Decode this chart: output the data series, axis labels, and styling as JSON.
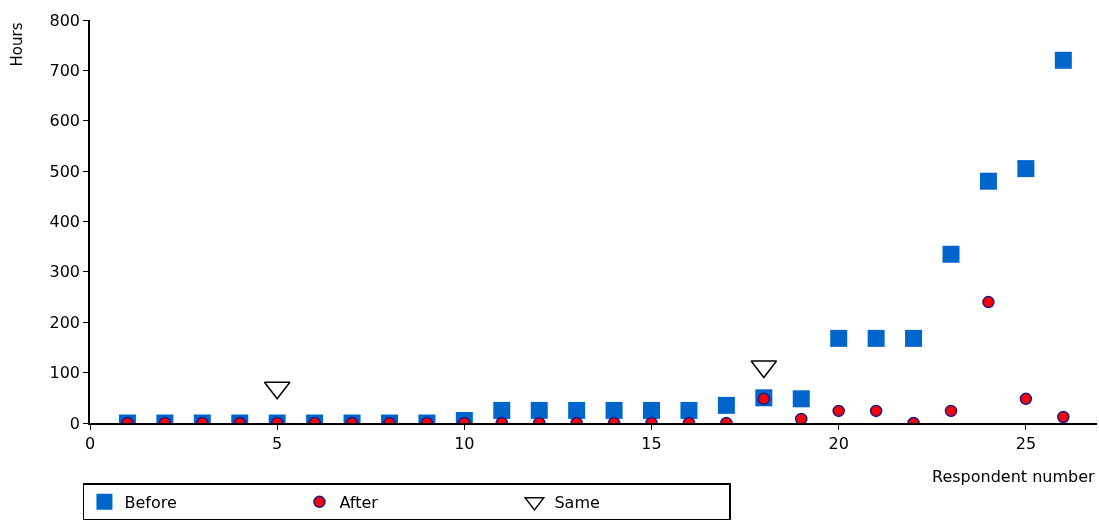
{
  "chart_data": {
    "type": "scatter",
    "xlabel": "Respondent number",
    "ylabel": "Hours",
    "x": [
      1,
      2,
      3,
      4,
      5,
      6,
      7,
      8,
      9,
      10,
      11,
      12,
      13,
      14,
      15,
      16,
      17,
      18,
      19,
      20,
      21,
      22,
      23,
      24,
      25,
      26
    ],
    "series": [
      {
        "name": "Before",
        "color": "#0066cc",
        "marker": "square",
        "values": [
          0,
          0,
          0,
          0,
          0,
          0,
          0,
          0,
          0,
          5,
          25,
          25,
          25,
          25,
          25,
          25,
          35,
          50,
          48,
          168,
          168,
          168,
          335,
          480,
          505,
          720
        ]
      },
      {
        "name": "After",
        "color": "#ff0000",
        "marker": "circle",
        "values": [
          0,
          0,
          0,
          0,
          0,
          0,
          0,
          0,
          0,
          0,
          0,
          0,
          0,
          0,
          0,
          0,
          0,
          48,
          8,
          24,
          24,
          0,
          24,
          240,
          48,
          12
        ]
      },
      {
        "name": "Same",
        "color": "#000000",
        "marker": "triangle",
        "x": [
          5,
          18
        ],
        "values": [
          70,
          112
        ]
      }
    ],
    "xlim": [
      0,
      26.9
    ],
    "xticks": [
      0,
      5,
      10,
      15,
      20,
      25
    ],
    "ylim": [
      0,
      800
    ],
    "yticks": [
      0,
      100,
      200,
      300,
      400,
      500,
      600,
      700,
      800
    ],
    "legend": "bottom left"
  }
}
